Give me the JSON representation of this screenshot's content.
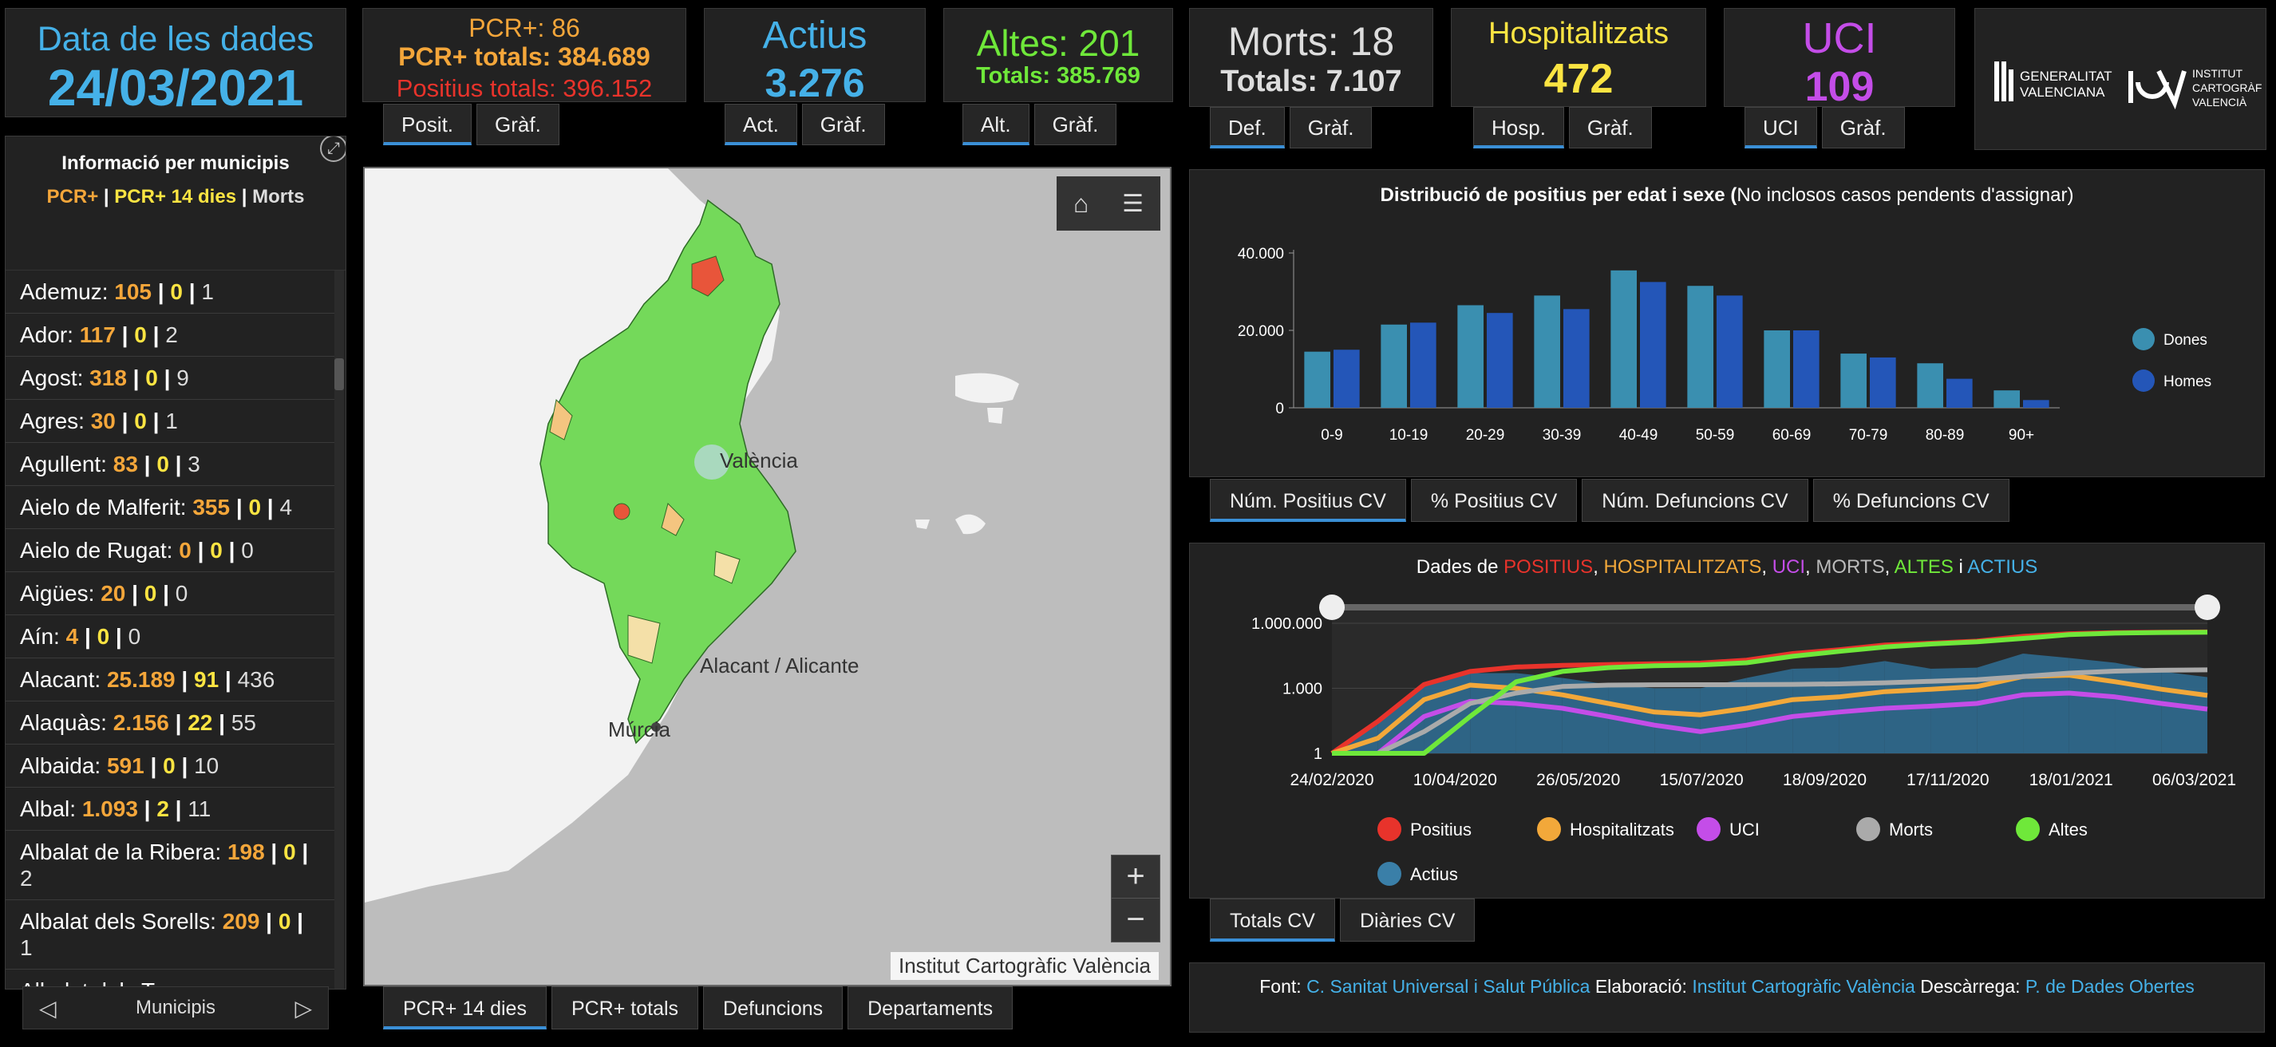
{
  "date_panel": {
    "title": "Data de les dades",
    "value": "24/03/2021"
  },
  "positius": {
    "pcr_label": "PCR+: 86",
    "pcr_totals": "PCR+ totals: 384.689",
    "positius_totals": "Positius totals: 396.152",
    "tab1": "Posit.",
    "tab2": "Gràf."
  },
  "actius": {
    "label": "Actius",
    "value": "3.276",
    "tab1": "Act.",
    "tab2": "Gràf."
  },
  "altes": {
    "label": "Altes: 201",
    "totals": "Totals: 385.769",
    "tab1": "Alt.",
    "tab2": "Gràf."
  },
  "morts": {
    "label": "Morts: 18",
    "totals": "Totals: 7.107",
    "tab1": "Def.",
    "tab2": "Gràf."
  },
  "hosp": {
    "label": "Hospitalitzats",
    "value": "472",
    "tab1": "Hosp.",
    "tab2": "Gràf."
  },
  "uci": {
    "label": "UCI",
    "value": "109",
    "tab1": "UCI",
    "tab2": "Gràf."
  },
  "logos": {
    "gva_line1": "GENERALITAT",
    "gva_line2": "VALENCIANA",
    "icv_line1": "INSTITUT",
    "icv_line2": "CARTOGRÀFIC",
    "icv_line3": "VALENCIÀ"
  },
  "municipis": {
    "title": "Informació per municipis",
    "legend_pcr": "PCR+",
    "legend_sep1": " | ",
    "legend_pcr14": "PCR+ 14 dies",
    "legend_sep2": " | ",
    "legend_morts": "Morts",
    "footer_label": "Municipis",
    "items": [
      {
        "name": "Ademuz:",
        "pcr": "105",
        "pcr14": "0",
        "morts": "1"
      },
      {
        "name": "Ador:",
        "pcr": "117",
        "pcr14": "0",
        "morts": "2"
      },
      {
        "name": "Agost:",
        "pcr": "318",
        "pcr14": "0",
        "morts": "9"
      },
      {
        "name": "Agres:",
        "pcr": "30",
        "pcr14": "0",
        "morts": "1"
      },
      {
        "name": "Agullent:",
        "pcr": "83",
        "pcr14": "0",
        "morts": "3"
      },
      {
        "name": "Aielo de Malferit:",
        "pcr": "355",
        "pcr14": "0",
        "morts": "4"
      },
      {
        "name": "Aielo de Rugat:",
        "pcr": "0",
        "pcr14": "0",
        "morts": "0"
      },
      {
        "name": "Aigües:",
        "pcr": "20",
        "pcr14": "0",
        "morts": "0"
      },
      {
        "name": "Aín:",
        "pcr": "4",
        "pcr14": "0",
        "morts": "0"
      },
      {
        "name": "Alacant:",
        "pcr": "25.189",
        "pcr14": "91",
        "morts": "436"
      },
      {
        "name": "Alaquàs:",
        "pcr": "2.156",
        "pcr14": "22",
        "morts": "55"
      },
      {
        "name": "Albaida:",
        "pcr": "591",
        "pcr14": "0",
        "morts": "10"
      },
      {
        "name": "Albal:",
        "pcr": "1.093",
        "pcr14": "2",
        "morts": "11"
      },
      {
        "name": "Albalat de la Ribera:",
        "pcr": "198",
        "pcr14": "0",
        "morts": "2"
      },
      {
        "name": "Albalat dels Sorells:",
        "pcr": "209",
        "pcr14": "0",
        "morts": "1"
      },
      {
        "name": "Albalat dels Tarongers:",
        "pcr": "",
        "pcr14": "",
        "morts": ""
      }
    ]
  },
  "map": {
    "labels": [
      "València",
      "Alacant / Alicante",
      "Múrcia"
    ],
    "attribution": "Institut Cartogràfic València",
    "tabs": [
      "PCR+ 14 dies",
      "PCR+ totals",
      "Defuncions",
      "Departaments"
    ],
    "zoom_in": "+",
    "zoom_out": "−"
  },
  "age_chart": {
    "title_bold": "Distribució de positius per edat i sexe (",
    "title_rest": "No inclosos casos pendents d'assignar)",
    "tabs": [
      "Núm. Positius CV",
      "% Positius CV",
      "Núm. Defuncions CV",
      "% Defuncions CV"
    ]
  },
  "timeline": {
    "title_prefix": "Dades de ",
    "title_parts": [
      {
        "text": "POSITIUS",
        "color": "#e8332b"
      },
      {
        "text": ", ",
        "color": "#ffffff"
      },
      {
        "text": "HOSPITALITZATS",
        "color": "#f2a83a"
      },
      {
        "text": ", ",
        "color": "#ffffff"
      },
      {
        "text": "UCI",
        "color": "#c44de8"
      },
      {
        "text": ", ",
        "color": "#ffffff"
      },
      {
        "text": "MORTS",
        "color": "#bbbbbb"
      },
      {
        "text": ", ",
        "color": "#ffffff"
      },
      {
        "text": "ALTES",
        "color": "#6fe83a"
      },
      {
        "text": " i ",
        "color": "#ffffff"
      },
      {
        "text": "ACTIUS",
        "color": "#45b1e8"
      }
    ],
    "tabs": [
      "Totals CV",
      "Diàries CV"
    ]
  },
  "source": {
    "font_label": "Font:",
    "font_value": "C. Sanitat Universal i Salut Pública",
    "elab_label": "Elaboració:",
    "elab_value": "Institut Cartogràfic València",
    "desc_label": "Descàrrega:",
    "desc_value": "P. de Dades Obertes"
  },
  "colors": {
    "accent": "#45b1e8",
    "pcr": "#f4a63a",
    "pcr14": "#fbe442",
    "positius": "#e8332b",
    "altes": "#6fe83a",
    "uci": "#c44de8",
    "hosp": "#fbe442",
    "dones": "#3a8fb0",
    "homes": "#2456b8"
  },
  "chart_data": [
    {
      "type": "bar",
      "title": "Distribució de positius per edat i sexe (No inclosos casos pendents d'assignar)",
      "categories": [
        "0-9",
        "10-19",
        "20-29",
        "30-39",
        "40-49",
        "50-59",
        "60-69",
        "70-79",
        "80-89",
        "90+"
      ],
      "series": [
        {
          "name": "Dones",
          "values": [
            14500,
            21500,
            26500,
            29000,
            35500,
            31500,
            20000,
            14000,
            11500,
            4500
          ]
        },
        {
          "name": "Homes",
          "values": [
            15000,
            22000,
            24500,
            25500,
            32500,
            29000,
            20000,
            13000,
            7500,
            2000
          ]
        }
      ],
      "yticks": [
        "0",
        "20.000",
        "40.000"
      ],
      "ylim": [
        0,
        40000
      ],
      "legend": "right"
    },
    {
      "type": "line",
      "scale": "log",
      "yticks": [
        "1",
        "1.000",
        "1.000.000"
      ],
      "xticks": [
        "24/02/2020",
        "10/04/2020",
        "26/05/2020",
        "15/07/2020",
        "18/09/2020",
        "17/11/2020",
        "18/01/2021",
        "06/03/2021"
      ],
      "x": [
        "24/02/2020",
        "01/03/2020",
        "15/03/2020",
        "01/04/2020",
        "15/04/2020",
        "01/05/2020",
        "01/06/2020",
        "01/07/2020",
        "15/07/2020",
        "01/08/2020",
        "01/09/2020",
        "01/10/2020",
        "01/11/2020",
        "01/12/2020",
        "01/01/2021",
        "15/01/2021",
        "01/02/2021",
        "15/02/2021",
        "01/03/2021",
        "24/03/2021"
      ],
      "series": [
        {
          "name": "Positius",
          "values": [
            1,
            30,
            1500,
            6000,
            9500,
            11500,
            12500,
            13500,
            14500,
            20000,
            40000,
            60000,
            100000,
            120000,
            150000,
            250000,
            330000,
            370000,
            385000,
            396152
          ]
        },
        {
          "name": "Hospitalitzats",
          "values": [
            1,
            5,
            300,
            1400,
            1000,
            500,
            200,
            80,
            60,
            120,
            300,
            400,
            700,
            900,
            1200,
            3500,
            4000,
            2000,
            900,
            472
          ]
        },
        {
          "name": "UCI",
          "values": [
            1,
            1,
            50,
            250,
            200,
            120,
            50,
            20,
            10,
            20,
            50,
            80,
            120,
            150,
            200,
            500,
            600,
            400,
            200,
            109
          ]
        },
        {
          "name": "Morts",
          "values": [
            1,
            1,
            10,
            200,
            600,
            1200,
            1400,
            1450,
            1460,
            1480,
            1520,
            1600,
            1800,
            2100,
            2500,
            3500,
            5000,
            6200,
            6800,
            7107
          ]
        },
        {
          "name": "Altes",
          "values": [
            1,
            1,
            1,
            50,
            2000,
            6000,
            9000,
            11000,
            12000,
            15000,
            30000,
            50000,
            80000,
            110000,
            140000,
            200000,
            300000,
            350000,
            375000,
            385769
          ]
        },
        {
          "name": "Actius",
          "values": [
            1,
            25,
            1300,
            5000,
            5000,
            3000,
            1500,
            1000,
            1000,
            3000,
            8000,
            9000,
            18000,
            8000,
            9000,
            40000,
            25000,
            15000,
            6000,
            3276
          ]
        }
      ],
      "legend_names": [
        "Positius",
        "Hospitalitzats",
        "UCI",
        "Morts",
        "Altes",
        "Actius"
      ],
      "legend_colors": [
        "#e8332b",
        "#f2a83a",
        "#c44de8",
        "#aaaaaa",
        "#6fe83a",
        "#3a7fa8"
      ]
    }
  ]
}
